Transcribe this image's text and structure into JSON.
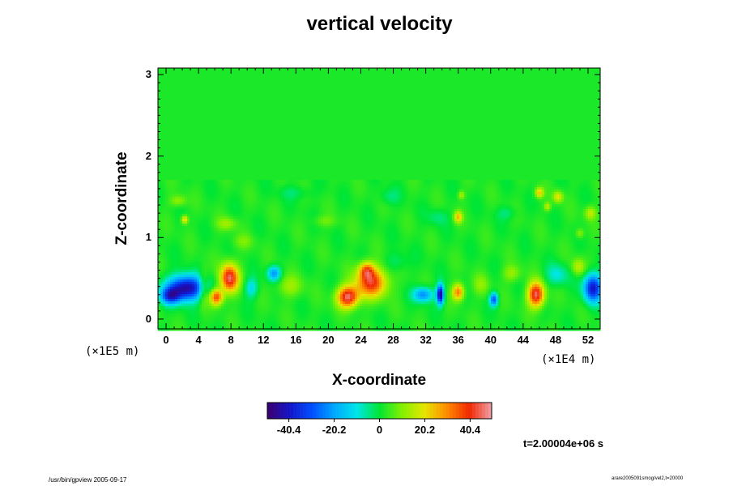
{
  "chart_data": {
    "type": "heatmap",
    "title": "vertical velocity",
    "xlabel": "X-coordinate",
    "ylabel": "Z-coordinate",
    "x_scale_label": "(×1E4 m)",
    "y_scale_label": "(×1E5 m)",
    "xlim": [
      -1,
      53.5
    ],
    "ylim": [
      -0.12,
      3.08
    ],
    "x_ticks": [
      0,
      4,
      8,
      12,
      16,
      20,
      24,
      28,
      32,
      36,
      40,
      44,
      48,
      52
    ],
    "x_tick_labels": [
      "0",
      "4",
      "8",
      "12",
      "16",
      "20",
      "24",
      "28",
      "32",
      "36",
      "40",
      "44",
      "48",
      "52"
    ],
    "y_ticks": [
      0,
      1,
      2,
      3
    ],
    "y_tick_labels": [
      "0",
      "1",
      "2",
      "3"
    ],
    "colorbar": {
      "range": [
        -50,
        50
      ],
      "ticks": [
        -40.4,
        -20.2,
        0,
        20.2,
        40.4
      ],
      "tick_labels": [
        "-40.4",
        "-20.2",
        "0",
        "20.2",
        "40.4"
      ]
    },
    "features": [
      {
        "x": 2.5,
        "z": 0.38,
        "sx": 2.3,
        "sz": 0.15,
        "v": -48
      },
      {
        "x": 0.5,
        "z": 0.28,
        "sx": 1.2,
        "sz": 0.1,
        "v": -30
      },
      {
        "x": 7.8,
        "z": 0.5,
        "sx": 1.1,
        "sz": 0.17,
        "v": 44
      },
      {
        "x": 6.2,
        "z": 0.27,
        "sx": 0.8,
        "sz": 0.1,
        "v": 36
      },
      {
        "x": 4.6,
        "z": 0.38,
        "sx": 0.6,
        "sz": 0.2,
        "v": 15
      },
      {
        "x": 10.5,
        "z": 0.38,
        "sx": 0.8,
        "sz": 0.12,
        "v": -14
      },
      {
        "x": 13.3,
        "z": 0.56,
        "sx": 0.8,
        "sz": 0.09,
        "v": -24
      },
      {
        "x": 15.2,
        "z": 0.4,
        "sx": 1.6,
        "sz": 0.13,
        "v": 10
      },
      {
        "x": 22.4,
        "z": 0.27,
        "sx": 1.3,
        "sz": 0.13,
        "v": 44
      },
      {
        "x": 25.3,
        "z": 0.45,
        "sx": 1.9,
        "sz": 0.18,
        "v": 38
      },
      {
        "x": 24.7,
        "z": 0.6,
        "sx": 0.9,
        "sz": 0.1,
        "v": 24
      },
      {
        "x": 31.7,
        "z": 0.3,
        "sx": 1.2,
        "sz": 0.09,
        "v": -26
      },
      {
        "x": 33.8,
        "z": 0.3,
        "sx": 0.45,
        "sz": 0.12,
        "v": -48
      },
      {
        "x": 36.0,
        "z": 0.33,
        "sx": 0.7,
        "sz": 0.1,
        "v": 30
      },
      {
        "x": 38.8,
        "z": 0.42,
        "sx": 1.0,
        "sz": 0.12,
        "v": 8
      },
      {
        "x": 40.4,
        "z": 0.24,
        "sx": 0.5,
        "sz": 0.08,
        "v": -32
      },
      {
        "x": 45.6,
        "z": 0.3,
        "sx": 1.0,
        "sz": 0.15,
        "v": 44
      },
      {
        "x": 42.6,
        "z": 0.56,
        "sx": 1.1,
        "sz": 0.1,
        "v": 10
      },
      {
        "x": 48.2,
        "z": 0.54,
        "sx": 1.3,
        "sz": 0.13,
        "v": -12
      },
      {
        "x": 52.6,
        "z": 0.38,
        "sx": 1.1,
        "sz": 0.17,
        "v": -42
      },
      {
        "x": 50.8,
        "z": 0.64,
        "sx": 0.8,
        "sz": 0.1,
        "v": 14
      },
      {
        "x": 1.5,
        "z": 1.45,
        "sx": 1.0,
        "sz": 0.07,
        "v": 10
      },
      {
        "x": 2.3,
        "z": 1.22,
        "sx": 0.4,
        "sz": 0.05,
        "v": 22
      },
      {
        "x": 7.5,
        "z": 1.17,
        "sx": 1.2,
        "sz": 0.08,
        "v": 10
      },
      {
        "x": 9.5,
        "z": 0.95,
        "sx": 1.3,
        "sz": 0.09,
        "v": 6
      },
      {
        "x": 19.5,
        "z": 1.2,
        "sx": 1.5,
        "sz": 0.07,
        "v": 6
      },
      {
        "x": 27.5,
        "z": 1.5,
        "sx": 1.2,
        "sz": 0.1,
        "v": -6
      },
      {
        "x": 28.5,
        "z": 0.7,
        "sx": 1.4,
        "sz": 0.12,
        "v": -6
      },
      {
        "x": 33.5,
        "z": 1.25,
        "sx": 1.2,
        "sz": 0.1,
        "v": -6
      },
      {
        "x": 36.0,
        "z": 1.25,
        "sx": 0.5,
        "sz": 0.07,
        "v": 22
      },
      {
        "x": 36.4,
        "z": 1.52,
        "sx": 0.4,
        "sz": 0.05,
        "v": 12
      },
      {
        "x": 42.0,
        "z": 1.3,
        "sx": 1.2,
        "sz": 0.08,
        "v": -6
      },
      {
        "x": 46.0,
        "z": 1.55,
        "sx": 0.5,
        "sz": 0.06,
        "v": 22
      },
      {
        "x": 48.3,
        "z": 1.5,
        "sx": 0.6,
        "sz": 0.07,
        "v": 18
      },
      {
        "x": 47.0,
        "z": 1.38,
        "sx": 0.4,
        "sz": 0.05,
        "v": 14
      },
      {
        "x": 52.3,
        "z": 1.3,
        "sx": 0.7,
        "sz": 0.08,
        "v": 14
      },
      {
        "x": 51.0,
        "z": 1.05,
        "sx": 0.5,
        "sz": 0.06,
        "v": 10
      },
      {
        "x": 16.0,
        "z": 1.55,
        "sx": 2.0,
        "sz": 0.08,
        "v": -5
      }
    ]
  },
  "time_label": "t=2.00004e+06 s",
  "footer_left": "/usr/bin/gpview 2005-09-17",
  "footer_right": "arare2005091smog/vel2,t=20000"
}
